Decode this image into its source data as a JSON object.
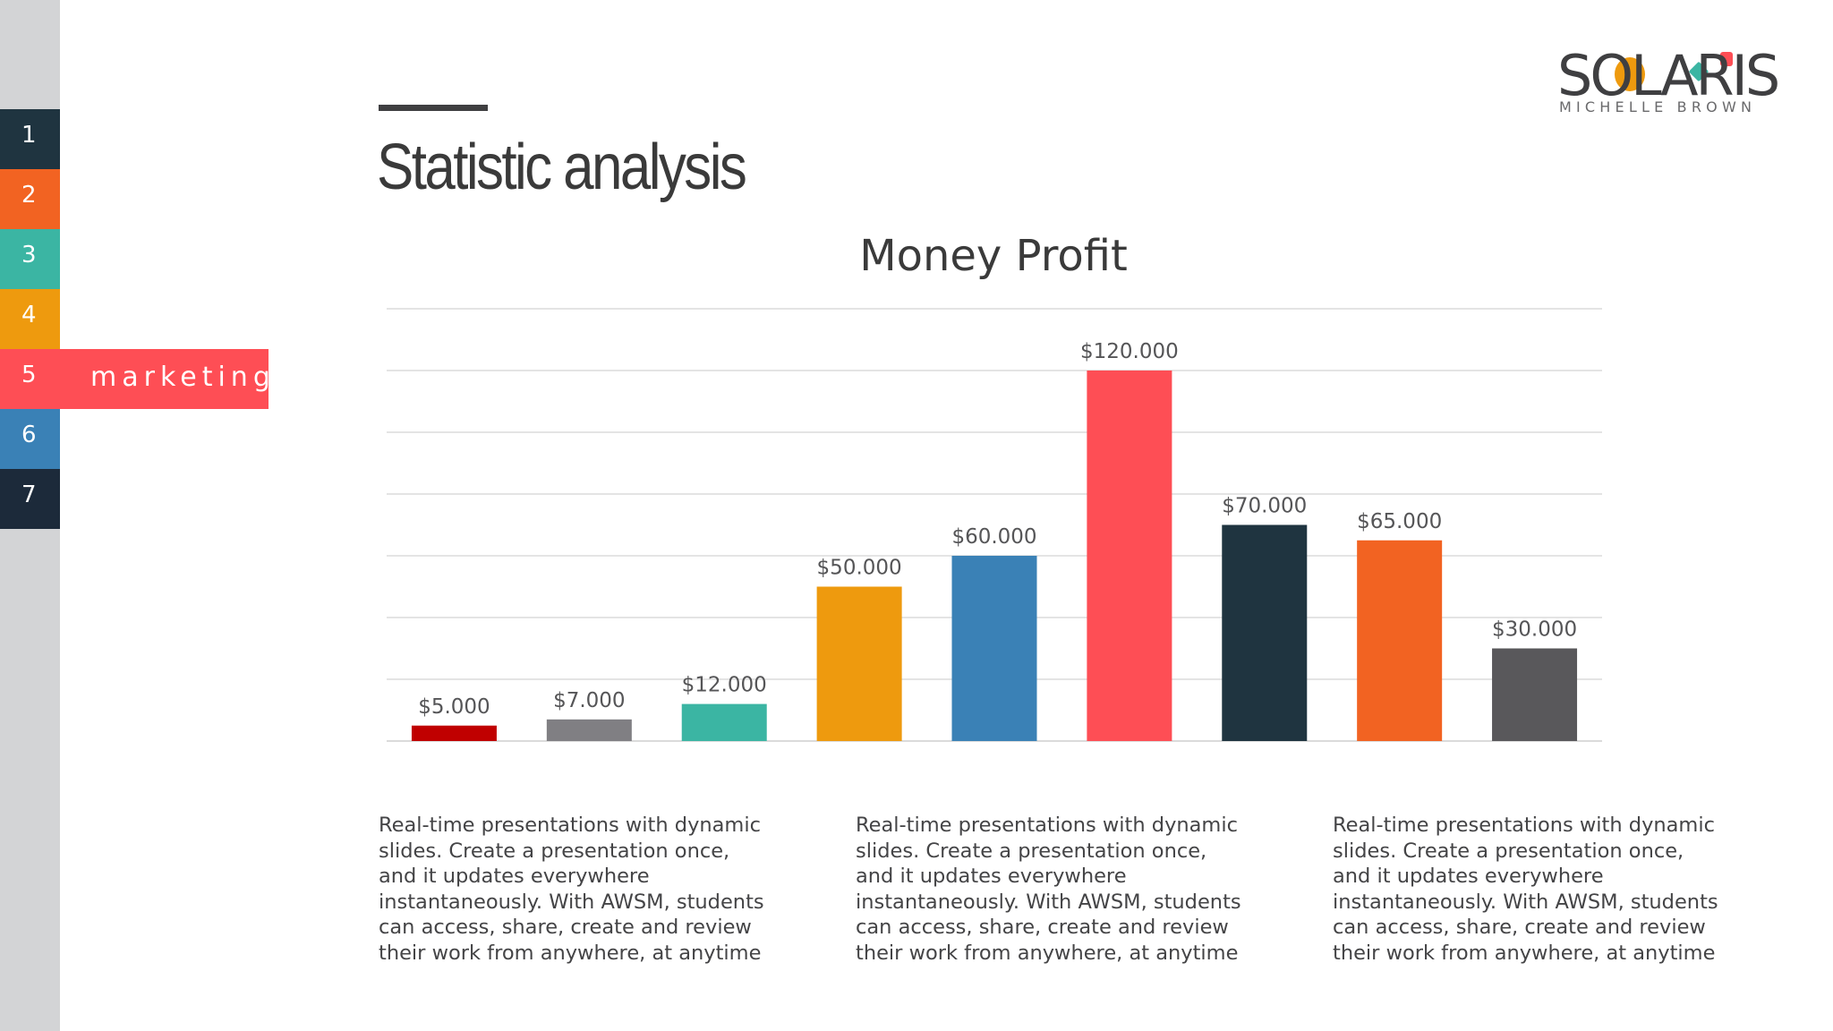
{
  "nav": {
    "items": [
      {
        "num": "1",
        "color": "#1f3440"
      },
      {
        "num": "2",
        "color": "#f26322"
      },
      {
        "num": "3",
        "color": "#3bb5a3"
      },
      {
        "num": "4",
        "color": "#ee9a0e"
      },
      {
        "num": "5",
        "label": "marketing",
        "color": "#fe4e55",
        "active": true
      },
      {
        "num": "6",
        "color": "#3a81b6"
      },
      {
        "num": "7",
        "color": "#1c2a3a"
      }
    ]
  },
  "logo": {
    "word": "SOLARIS",
    "subtitle": "MICHELLE BROWN",
    "accent_colors": [
      "#ee9a0e",
      "#3bb5a3",
      "#fe4e55"
    ]
  },
  "page": {
    "title": "Statistic analysis"
  },
  "chart_data": {
    "type": "bar",
    "title": "Money Profit",
    "categories": [
      "",
      "",
      "",
      "",
      "",
      "",
      "",
      "",
      ""
    ],
    "values": [
      5000,
      7000,
      12000,
      50000,
      60000,
      120000,
      70000,
      65000,
      30000
    ],
    "data_labels": [
      "$5.000",
      "$7.000",
      "$12.000",
      "$50.000",
      "$60.000",
      "$120.000",
      "$70.000",
      "$65.000",
      "$30.000"
    ],
    "colors": [
      "#c00000",
      "#807f83",
      "#3bb5a3",
      "#ee9a0e",
      "#3a81b6",
      "#fe4e55",
      "#1f3440",
      "#f26322",
      "#59585b"
    ],
    "xlabel": "",
    "ylabel": "",
    "ylim": [
      0,
      140000
    ],
    "grid": true,
    "legend": "none"
  },
  "descriptions": [
    "Real-time presentations with dynamic slides. Create a presentation once, and it updates everywhere instantaneously. With AWSM, students can access, share, create and review their work from anywhere, at anytime",
    "Real-time presentations with dynamic slides. Create a presentation once, and it updates everywhere instantaneously. With AWSM, students can access, share, create and review their work from anywhere, at anytime",
    "Real-time presentations with dynamic slides. Create a presentation once, and it updates everywhere instantaneously. With AWSM, students can access, share, create and review their work from anywhere, at anytime"
  ]
}
